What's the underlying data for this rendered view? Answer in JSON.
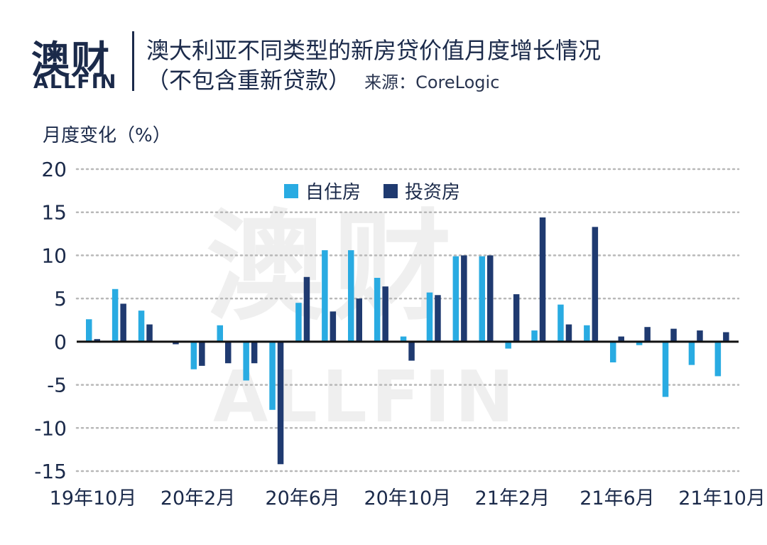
{
  "logo": {
    "cn": "澳财",
    "en": "ALLFIN"
  },
  "header": {
    "title": "澳大利亚不同类型的新房贷价值月度增长情况",
    "subtitle": "（不包含重新贷款）",
    "source": "来源：CoreLogic"
  },
  "watermark": {
    "cn": "澳财",
    "en": "ALLFIN"
  },
  "chart_data": {
    "type": "bar",
    "ylabel": "月度变化（%）",
    "ylim": [
      -15,
      20
    ],
    "y_ticks": [
      20,
      15,
      10,
      5,
      0,
      -5,
      -10,
      -15
    ],
    "grid": "horizontal dotted",
    "legend_position": "top-center",
    "x_tick_labels": [
      "19年10月",
      "20年2月",
      "20年6月",
      "20年10月",
      "21年2月",
      "21年6月",
      "21年10月"
    ],
    "categories": [
      "19年10月",
      "19年11月",
      "19年12月",
      "20年1月",
      "20年2月",
      "20年3月",
      "20年4月",
      "20年5月",
      "20年6月",
      "20年7月",
      "20年8月",
      "20年9月",
      "20年10月",
      "20年11月",
      "20年12月",
      "21年1月",
      "21年2月",
      "21年3月",
      "21年4月",
      "21年5月",
      "21年6月",
      "21年7月",
      "21年8月",
      "21年9月",
      "21年10月"
    ],
    "series": [
      {
        "name": "自住房",
        "color": "#29abe2",
        "values": [
          2.6,
          6.1,
          3.6,
          0.0,
          -3.2,
          1.9,
          -4.5,
          -7.9,
          4.5,
          10.6,
          10.6,
          7.4,
          0.6,
          5.7,
          9.9,
          9.9,
          -0.8,
          1.3,
          4.3,
          1.9,
          -2.4,
          -0.4,
          -6.4,
          -2.7,
          -4.0
        ]
      },
      {
        "name": "投资房",
        "color": "#1f3a70",
        "values": [
          0.3,
          4.4,
          2.0,
          -0.3,
          -2.8,
          -2.5,
          -2.5,
          -14.2,
          7.5,
          3.5,
          5.0,
          6.4,
          -2.2,
          5.4,
          10.0,
          10.0,
          5.5,
          14.4,
          2.0,
          13.3,
          0.6,
          1.7,
          1.5,
          1.3,
          1.1
        ]
      }
    ]
  }
}
